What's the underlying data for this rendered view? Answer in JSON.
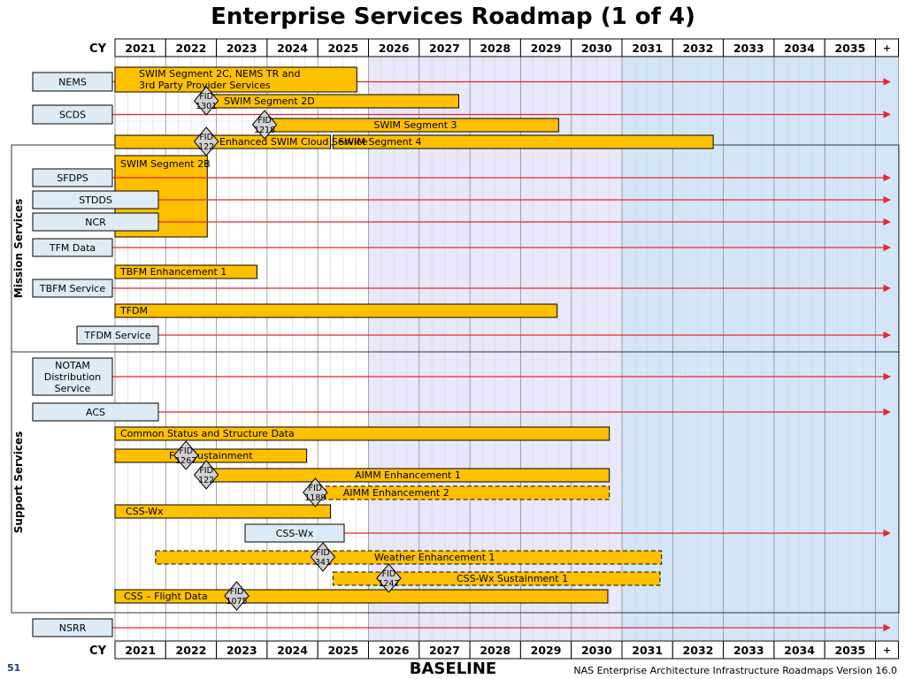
{
  "title": "Enterprise Services Roadmap (1 of 4)",
  "footer": {
    "baseline": "BASELINE",
    "page_number": "51",
    "note": "NAS Enterprise Architecture Infrastructure Roadmaps Version 16.0"
  },
  "timeline": {
    "cy_label": "CY",
    "years": [
      "2021",
      "2022",
      "2023",
      "2024",
      "2025",
      "2026",
      "2027",
      "2028",
      "2029",
      "2030",
      "2031",
      "2032",
      "2033",
      "2034",
      "2035"
    ],
    "plus_label": "+"
  },
  "groups": [
    {
      "label": "Mission Services",
      "from": "SWIM Segment 2B",
      "to": "TFDM Service"
    },
    {
      "label": "Support Services",
      "from": "NOTAM Distribution Service",
      "to": "CSS – Flight Data"
    }
  ],
  "colors": {
    "bar_fill": "#ffc000",
    "service_fill": "#dcebf5",
    "arrow": "#e8262b",
    "band_mid": "#e8e8fa",
    "band_far": "#d3e6f7",
    "milestone": "#d0d0d0"
  },
  "rows": [
    {
      "service": "NEMS",
      "bars": [
        {
          "label": "SWIM Segment 2C, NEMS TR and 3rd Party Provider Services",
          "start": 2021,
          "end": 2025.77
        }
      ]
    },
    {
      "bars": [
        {
          "label": "SWIM Segment 2D",
          "start": 2022.8,
          "end": 2027.78
        }
      ],
      "milestones": [
        {
          "label": "FID 1301",
          "at": 2022.8
        }
      ]
    },
    {
      "service": "SCDS"
    },
    {
      "bars": [
        {
          "label": "SWIM Segment 3",
          "start": 2024.1,
          "end": 2029.75
        }
      ],
      "milestones": [
        {
          "label": "FID 1218",
          "at": 2023.95
        }
      ]
    },
    {
      "bars": [
        {
          "label": "Enhanced SWIM Cloud Service",
          "start": 2021,
          "end": 2025.25
        },
        {
          "label": "SWIM Segment 4",
          "start": 2025.3,
          "end": 2032.8
        }
      ],
      "milestones": [
        {
          "label": "FID 122",
          "at": 2022.8
        }
      ]
    },
    {
      "bars": [
        {
          "label": "SWIM Segment 2B",
          "start": 2021,
          "end": 2022.82
        }
      ]
    },
    {
      "service": "SFDPS"
    },
    {
      "service": "STDDS"
    },
    {
      "service": "NCR"
    },
    {
      "service": "TFM Data"
    },
    {
      "bars": [
        {
          "label": "TBFM Enhancement 1",
          "start": 2021,
          "end": 2023.8
        }
      ]
    },
    {
      "service": "TBFM Service"
    },
    {
      "bars": [
        {
          "label": "TFDM",
          "start": 2021,
          "end": 2029.72
        }
      ]
    },
    {
      "service": "TFDM Service"
    },
    {
      "service": "NOTAM Distribution Service"
    },
    {
      "service": "ACS"
    },
    {
      "bars": [
        {
          "label": "Common Status and Structure Data",
          "start": 2021,
          "end": 2030.75
        }
      ]
    },
    {
      "bars": [
        {
          "label": "FNS Sustainment",
          "start": 2021,
          "end": 2024.78
        }
      ],
      "milestones": [
        {
          "label": "FID 1267",
          "at": 2022.4
        }
      ]
    },
    {
      "bars": [
        {
          "label": "AIMM Enhancement 1",
          "start": 2022.8,
          "end": 2030.75
        }
      ],
      "milestones": [
        {
          "label": "FID 122",
          "at": 2022.8
        }
      ]
    },
    {
      "bars": [
        {
          "label": "AIMM Enhancement 2",
          "start": 2025.15,
          "end": 2030.75,
          "planned": true
        }
      ],
      "milestones": [
        {
          "label": "FID 1189",
          "at": 2024.95
        }
      ]
    },
    {
      "bars": [
        {
          "label": "CSS-Wx",
          "start": 2021,
          "end": 2025.25
        }
      ]
    },
    {
      "service": "CSS-Wx"
    },
    {
      "bars": [
        {
          "label": "Weather Enhancement 1",
          "start": 2021.8,
          "end": 2031.78,
          "planned": true
        }
      ],
      "milestones": [
        {
          "label": "FID 341",
          "at": 2025.1
        }
      ]
    },
    {
      "bars": [
        {
          "label": "CSS-Wx Sustainment 1",
          "start": 2025.3,
          "end": 2031.75,
          "planned": true
        }
      ],
      "milestones": [
        {
          "label": "FID 1247",
          "at": 2026.4
        }
      ]
    },
    {
      "bars": [
        {
          "label": "CSS – Flight Data",
          "start": 2021,
          "end": 2030.72
        }
      ],
      "milestones": [
        {
          "label": "FID 1075",
          "at": 2023.4
        }
      ]
    },
    {
      "service": "NSRR"
    }
  ]
}
